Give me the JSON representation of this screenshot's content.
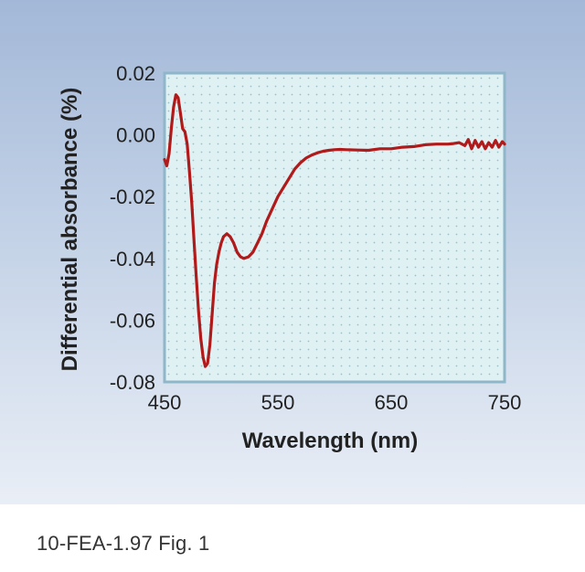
{
  "caption": "10-FEA-1.97 Fig. 1",
  "colors": {
    "panel_top": "#a3b8d8",
    "plot_background": "#dff1f3",
    "plot_border": "#8fb7c9",
    "curve": "#b01a1a",
    "text": "#222222"
  },
  "chart_data": {
    "type": "line",
    "title": "",
    "xlabel": "Wavelength (nm)",
    "ylabel": "Differential absorbance (%)",
    "xlim": [
      450,
      750
    ],
    "ylim": [
      -0.08,
      0.02
    ],
    "x_ticks": [
      450,
      550,
      650,
      750
    ],
    "x_tick_labels": [
      "450",
      "550",
      "650",
      "750"
    ],
    "y_ticks": [
      0.02,
      0.0,
      -0.02,
      -0.04,
      -0.06,
      -0.08
    ],
    "y_tick_labels": [
      "0.02",
      "0.00",
      "-0.02",
      "-0.04",
      "-0.06",
      "-0.08"
    ],
    "grid": "dotted",
    "series": [
      {
        "x": [
          450,
          452,
          454,
          456,
          458,
          460,
          462,
          464,
          466,
          468,
          470,
          472,
          474,
          476,
          478,
          480,
          482,
          484,
          486,
          488,
          490,
          492,
          494,
          496,
          498,
          500,
          502,
          505,
          508,
          511,
          514,
          517,
          520,
          524,
          528,
          532,
          536,
          540,
          545,
          550,
          555,
          560,
          565,
          570,
          575,
          580,
          585,
          590,
          595,
          600,
          605,
          610,
          620,
          630,
          640,
          650,
          660,
          670,
          680,
          690,
          700,
          705,
          710,
          715,
          718,
          721,
          724,
          727,
          730,
          733,
          736,
          739,
          742,
          745,
          748,
          750
        ],
        "y": [
          -0.008,
          -0.01,
          -0.006,
          0.002,
          0.009,
          0.013,
          0.012,
          0.007,
          0.002,
          0.001,
          -0.003,
          -0.012,
          -0.022,
          -0.034,
          -0.046,
          -0.057,
          -0.066,
          -0.072,
          -0.075,
          -0.074,
          -0.068,
          -0.058,
          -0.048,
          -0.042,
          -0.038,
          -0.035,
          -0.033,
          -0.032,
          -0.033,
          -0.035,
          -0.038,
          -0.0395,
          -0.04,
          -0.0395,
          -0.038,
          -0.035,
          -0.032,
          -0.028,
          -0.024,
          -0.02,
          -0.017,
          -0.014,
          -0.011,
          -0.009,
          -0.0075,
          -0.0065,
          -0.0058,
          -0.0053,
          -0.005,
          -0.0048,
          -0.0047,
          -0.0048,
          -0.0049,
          -0.005,
          -0.0045,
          -0.0045,
          -0.004,
          -0.0038,
          -0.0032,
          -0.003,
          -0.003,
          -0.0028,
          -0.0025,
          -0.0035,
          -0.0015,
          -0.0045,
          -0.0018,
          -0.004,
          -0.0022,
          -0.0045,
          -0.0025,
          -0.004,
          -0.0018,
          -0.004,
          -0.0022,
          -0.003
        ]
      }
    ]
  }
}
